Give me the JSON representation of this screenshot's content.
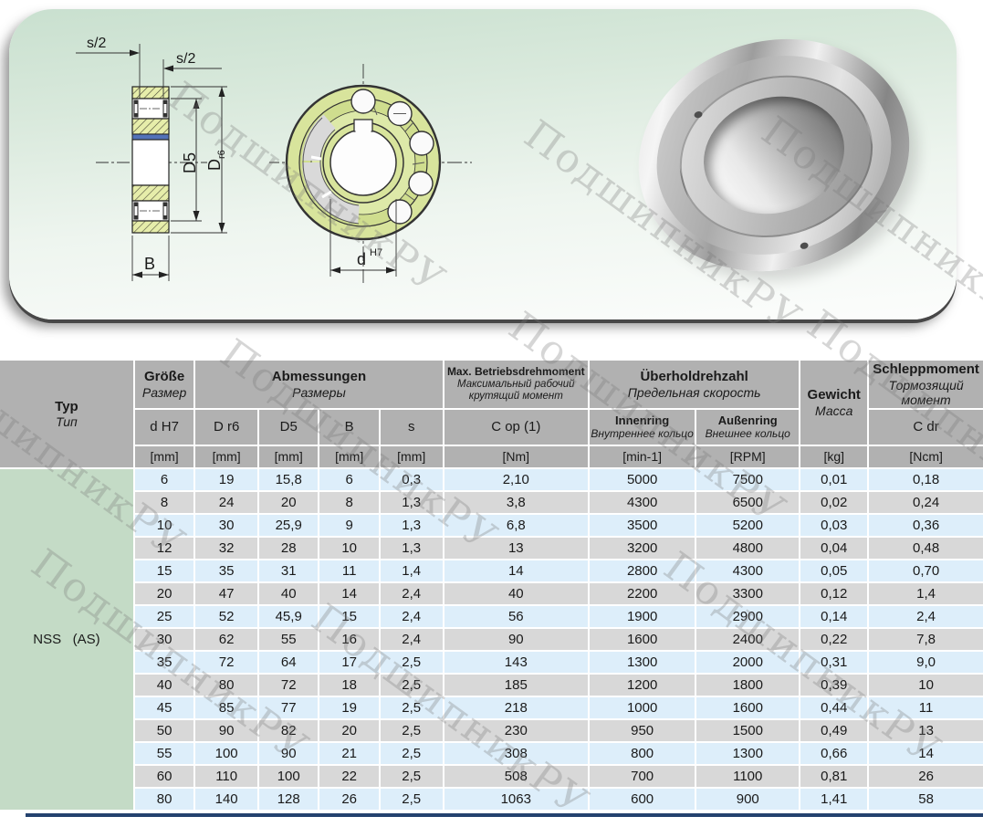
{
  "watermark_text": "ПодшипникРУ",
  "panel": {
    "cross_section": {
      "dim_s2_left": "s/2",
      "dim_s2_right": "s/2",
      "dim_d5": "D5",
      "dim_dr6_main": "D",
      "dim_dr6_sub": "r6",
      "dim_b": "B"
    },
    "front_view": {
      "dim_d": "d",
      "dim_d_tol": "H7"
    }
  },
  "table": {
    "type_label": "NSS   (AS)",
    "header": {
      "typ": {
        "de": "Typ",
        "ru": "Тип"
      },
      "size": {
        "de": "Größe",
        "ru": "Размер"
      },
      "dimensions": {
        "de": "Abmessungen",
        "ru": "Размеры"
      },
      "max_torque": {
        "de": "Max. Betriebsdrehmoment",
        "ru1": "Максимальный рабочий",
        "ru2": "крутящий момент"
      },
      "overrun_speed": {
        "de": "Überholdrehzahl",
        "ru": "Предельная скорость"
      },
      "inner_ring": {
        "de": "Innenring",
        "ru": "Внутреннее кольцо"
      },
      "outer_ring": {
        "de": "Außenring",
        "ru": "Внешнее кольцо"
      },
      "weight": {
        "de": "Gewicht",
        "ru": "Масса"
      },
      "drag_torque": {
        "de": "Schleppmoment",
        "ru1": "Тормозящий",
        "ru2": "момент"
      },
      "sub": {
        "d_h7": "d H7",
        "d_r6": "D r6",
        "d5": "D5",
        "b": "B",
        "s": "s",
        "c_op": "C op (1)",
        "c_dr": "C dr"
      },
      "units": {
        "mm1": "[mm]",
        "mm2": "[mm]",
        "mm3": "[mm]",
        "mm4": "[mm]",
        "mm5": "[mm]",
        "nm": "[Nm]",
        "min1": "[min-1]",
        "rpm": "[RPM]",
        "kg": "[kg]",
        "ncm": "[Ncm]"
      }
    },
    "rows": [
      [
        "6",
        "19",
        "15,8",
        "6",
        "0,3",
        "2,10",
        "5000",
        "7500",
        "0,01",
        "0,18"
      ],
      [
        "8",
        "24",
        "20",
        "8",
        "1,3",
        "3,8",
        "4300",
        "6500",
        "0,02",
        "0,24"
      ],
      [
        "10",
        "30",
        "25,9",
        "9",
        "1,3",
        "6,8",
        "3500",
        "5200",
        "0,03",
        "0,36"
      ],
      [
        "12",
        "32",
        "28",
        "10",
        "1,3",
        "13",
        "3200",
        "4800",
        "0,04",
        "0,48"
      ],
      [
        "15",
        "35",
        "31",
        "11",
        "1,4",
        "14",
        "2800",
        "4300",
        "0,05",
        "0,70"
      ],
      [
        "20",
        "47",
        "40",
        "14",
        "2,4",
        "40",
        "2200",
        "3300",
        "0,12",
        "1,4"
      ],
      [
        "25",
        "52",
        "45,9",
        "15",
        "2,4",
        "56",
        "1900",
        "2900",
        "0,14",
        "2,4"
      ],
      [
        "30",
        "62",
        "55",
        "16",
        "2,4",
        "90",
        "1600",
        "2400",
        "0,22",
        "7,8"
      ],
      [
        "35",
        "72",
        "64",
        "17",
        "2,5",
        "143",
        "1300",
        "2000",
        "0,31",
        "9,0"
      ],
      [
        "40",
        "80",
        "72",
        "18",
        "2,5",
        "185",
        "1200",
        "1800",
        "0,39",
        "10"
      ],
      [
        "45",
        "85",
        "77",
        "19",
        "2,5",
        "218",
        "1000",
        "1600",
        "0,44",
        "11"
      ],
      [
        "50",
        "90",
        "82",
        "20",
        "2,5",
        "230",
        "950",
        "1500",
        "0,49",
        "13"
      ],
      [
        "55",
        "100",
        "90",
        "21",
        "2,5",
        "308",
        "800",
        "1300",
        "0,66",
        "14"
      ],
      [
        "60",
        "110",
        "100",
        "22",
        "2,5",
        "508",
        "700",
        "1100",
        "0,81",
        "26"
      ],
      [
        "80",
        "140",
        "128",
        "26",
        "2,5",
        "1063",
        "600",
        "900",
        "1,41",
        "58"
      ]
    ]
  }
}
